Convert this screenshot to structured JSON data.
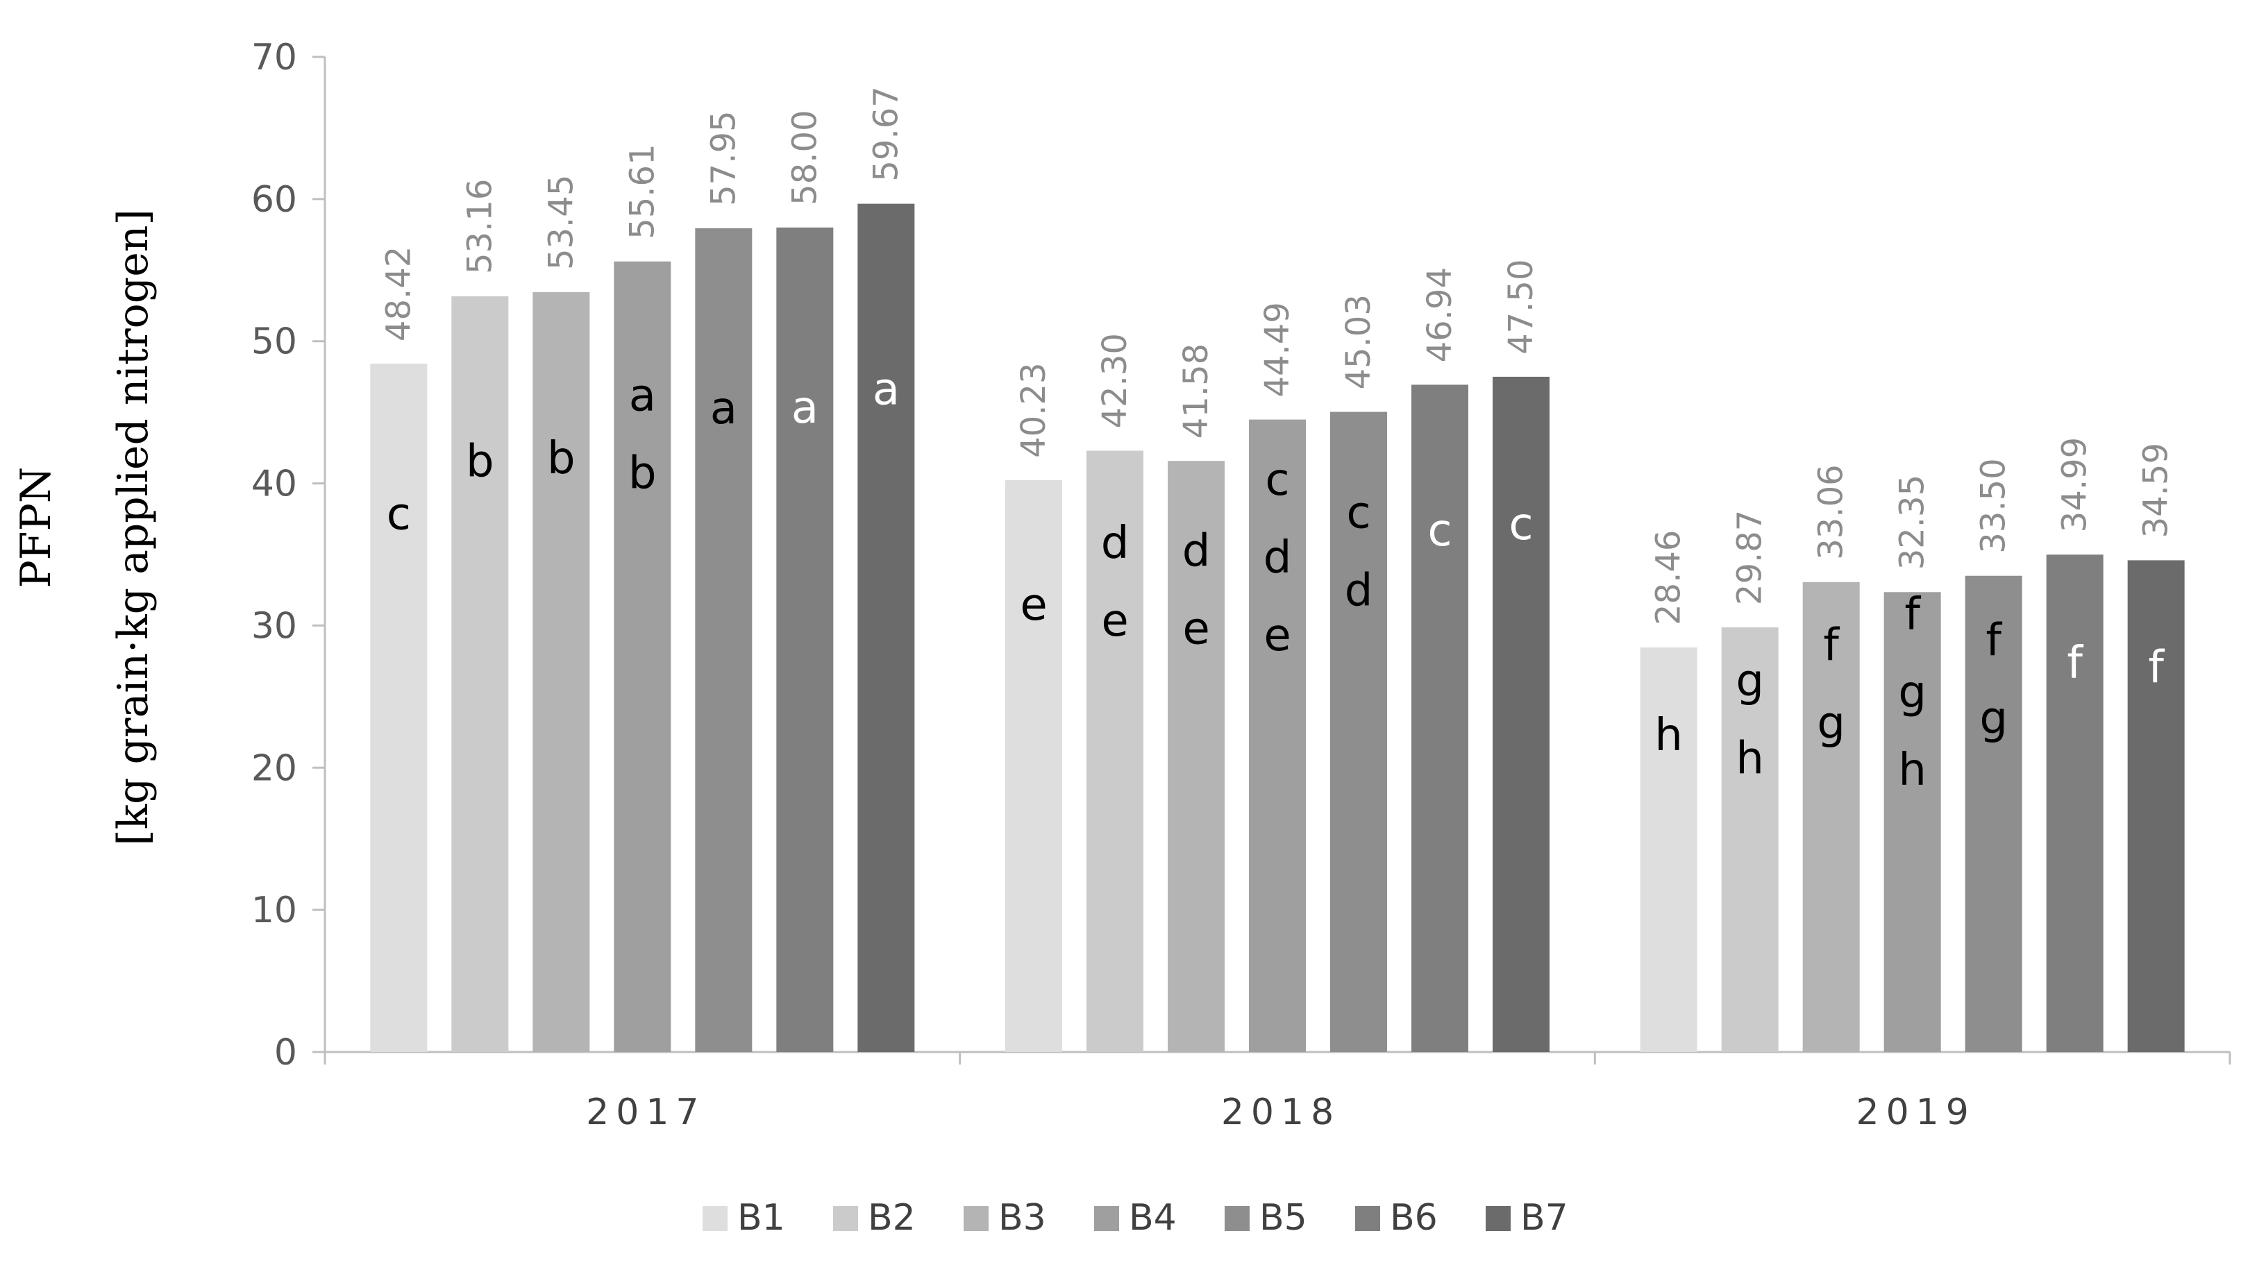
{
  "chart_data": {
    "type": "bar",
    "title": "",
    "ylabel_line1": "PFPN",
    "ylabel_line2": "[kg grain·kg applied nitrogen]",
    "xlabel": "",
    "ylim": [
      0,
      70
    ],
    "yticks": [
      0,
      10,
      20,
      30,
      40,
      50,
      60,
      70
    ],
    "grid": false,
    "legend_position": "bottom",
    "categories": [
      "2017",
      "2018",
      "2019"
    ],
    "series": [
      {
        "name": "B1",
        "color": "#dedede",
        "values": [
          48.42,
          40.23,
          28.46
        ],
        "labels": [
          "48.42",
          "40.23",
          "28.46"
        ],
        "letters": [
          "c",
          "e",
          "h"
        ]
      },
      {
        "name": "B2",
        "color": "#cbcbcb",
        "values": [
          53.16,
          42.3,
          29.87
        ],
        "labels": [
          "53.16",
          "42.30",
          "29.87"
        ],
        "letters": [
          "b",
          "d\ne",
          "g\nh"
        ]
      },
      {
        "name": "B3",
        "color": "#b4b4b4",
        "values": [
          53.45,
          41.58,
          33.06
        ],
        "labels": [
          "53.45",
          "41.58",
          "33.06"
        ],
        "letters": [
          "b",
          "d\ne",
          "f\ng"
        ]
      },
      {
        "name": "B4",
        "color": "#9f9f9f",
        "values": [
          55.61,
          44.49,
          32.35
        ],
        "labels": [
          "55.61",
          "44.49",
          "32.35"
        ],
        "letters": [
          "a\nb",
          "c\nd\ne",
          "f\ng\nh"
        ]
      },
      {
        "name": "B5",
        "color": "#8e8e8e",
        "values": [
          57.95,
          45.03,
          33.5
        ],
        "labels": [
          "57.95",
          "45.03",
          "33.50"
        ],
        "letters": [
          "a",
          "c\nd",
          "f\ng"
        ]
      },
      {
        "name": "B6",
        "color": "#7f7f7f",
        "values": [
          58.0,
          46.94,
          34.99
        ],
        "labels": [
          "58.00",
          "46.94",
          "34.99"
        ],
        "letters": [
          "a",
          "c",
          "f"
        ]
      },
      {
        "name": "B7",
        "color": "#6b6b6b",
        "values": [
          59.67,
          47.5,
          34.59
        ],
        "labels": [
          "59.67",
          "47.50",
          "34.59"
        ],
        "letters": [
          "a",
          "c",
          "f"
        ]
      }
    ],
    "letter_colors": {
      "dark": "#000000",
      "light": "#ffffff"
    },
    "axis_color": "#bfbfbf"
  }
}
